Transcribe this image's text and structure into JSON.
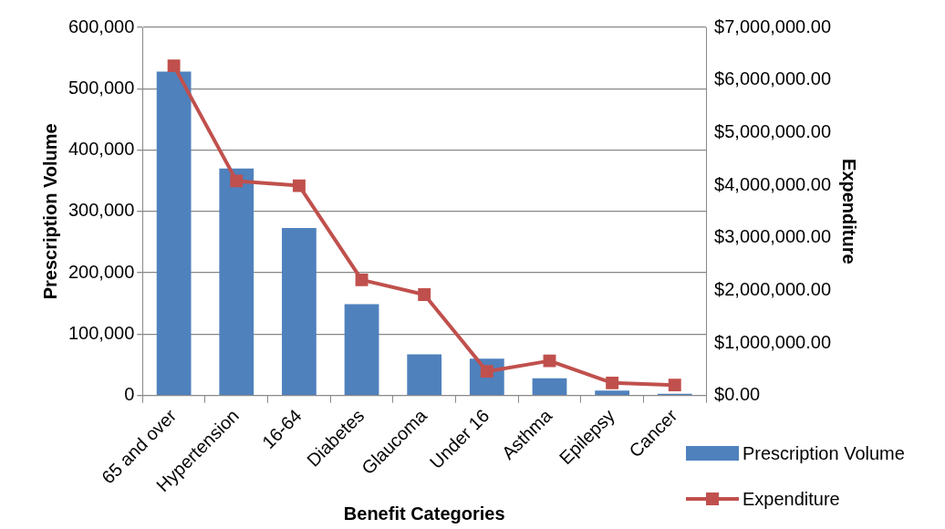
{
  "chart_data": {
    "type": "bar",
    "xlabel": "Benefit Categories",
    "ylabel": "Prescription Volume",
    "y2label": "Expenditure",
    "categories": [
      "65 and over",
      "Hypertension",
      "16-64",
      "Diabetes",
      "Glaucoma",
      "Under 16",
      "Asthma",
      "Epilepsy",
      "Cancer"
    ],
    "series": [
      {
        "name": "Prescription Volume",
        "color": "#4f81bd",
        "values": [
          528000,
          370000,
          273000,
          149000,
          67000,
          60000,
          28000,
          8000,
          3000
        ]
      },
      {
        "name": "Expenditure",
        "type": "line",
        "axis": "y2",
        "color": "#c0504d",
        "values": [
          6270000,
          4080000,
          3990000,
          2200000,
          1920000,
          460000,
          660000,
          240000,
          200000
        ]
      }
    ],
    "ylim": [
      0,
      600000
    ],
    "yticks": [
      {
        "value": 0,
        "label": "0"
      },
      {
        "value": 100000,
        "label": "100,000"
      },
      {
        "value": 200000,
        "label": "200,000"
      },
      {
        "value": 300000,
        "label": "300,000"
      },
      {
        "value": 400000,
        "label": "400,000"
      },
      {
        "value": 500000,
        "label": "500,000"
      },
      {
        "value": 600000,
        "label": "600,000"
      }
    ],
    "y2lim": [
      0,
      7000000
    ],
    "y2ticks": [
      {
        "value": 0,
        "label": "$0.00"
      },
      {
        "value": 1000000,
        "label": "$1,000,000.00"
      },
      {
        "value": 2000000,
        "label": "$2,000,000.00"
      },
      {
        "value": 3000000,
        "label": "$3,000,000.00"
      },
      {
        "value": 4000000,
        "label": "$4,000,000.00"
      },
      {
        "value": 5000000,
        "label": "$5,000,000.00"
      },
      {
        "value": 6000000,
        "label": "$6,000,000.00"
      },
      {
        "value": 7000000,
        "label": "$7,000,000.00"
      }
    ],
    "grid": "y",
    "legend": "bottom right",
    "marker": "square",
    "line_style": "solid"
  }
}
